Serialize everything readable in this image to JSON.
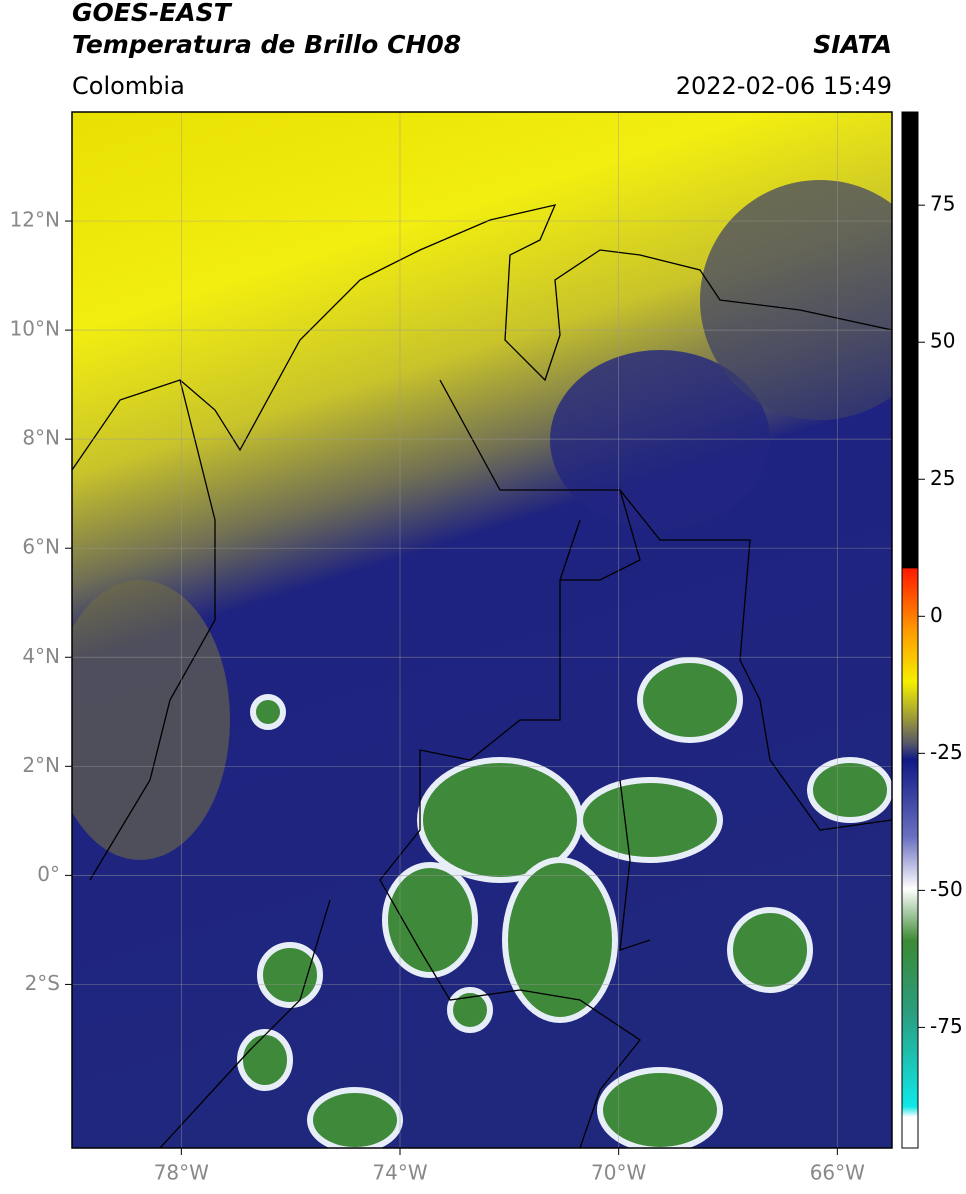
{
  "header": {
    "title": "GOES-EAST",
    "subtitle": "Temperatura de Brillo CH08",
    "source": "SIATA",
    "region": "Colombia",
    "datetime": "2022-02-06 15:49"
  },
  "map": {
    "xlim": [
      -80,
      -65
    ],
    "ylim": [
      -5,
      14
    ],
    "xticks": [
      {
        "value": -78,
        "label": "78°W"
      },
      {
        "value": -74,
        "label": "74°W"
      },
      {
        "value": -70,
        "label": "70°W"
      },
      {
        "value": -66,
        "label": "66°W"
      }
    ],
    "yticks": [
      {
        "value": 12,
        "label": "12°N"
      },
      {
        "value": 10,
        "label": "10°N"
      },
      {
        "value": 8,
        "label": "8°N"
      },
      {
        "value": 6,
        "label": "6°N"
      },
      {
        "value": 4,
        "label": "4°N"
      },
      {
        "value": 2,
        "label": "2°N"
      },
      {
        "value": 0,
        "label": "0°"
      },
      {
        "value": -2,
        "label": "2°S"
      }
    ],
    "grid": true
  },
  "colorbar": {
    "lim": [
      -97,
      92
    ],
    "ticks": [
      75,
      50,
      25,
      0,
      -25,
      -50,
      -75
    ]
  }
}
